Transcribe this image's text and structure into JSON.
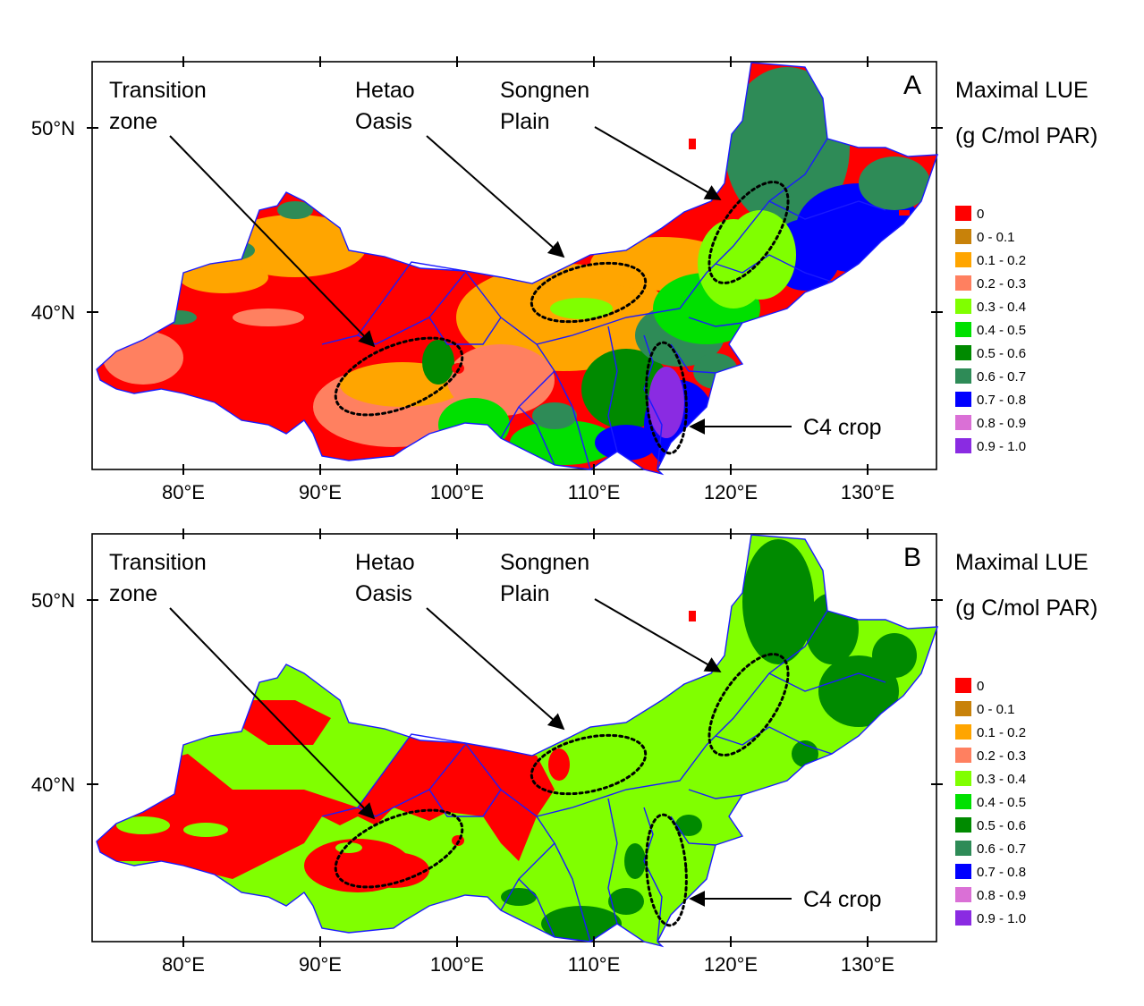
{
  "panels": [
    {
      "id": "A",
      "letter": "A",
      "legend_title_1": "Maximal LUE",
      "legend_title_2": "(g C/mol PAR)",
      "annotations": {
        "transition": [
          "Transition",
          "zone"
        ],
        "hetao": [
          "Hetao",
          "Oasis"
        ],
        "songnen": [
          "Songnen",
          "Plain"
        ],
        "c4": "C4 crop"
      }
    },
    {
      "id": "B",
      "letter": "B",
      "legend_title_1": "Maximal LUE",
      "legend_title_2": "(g C/mol PAR)",
      "annotations": {
        "transition": [
          "Transition",
          "zone"
        ],
        "hetao": [
          "Hetao",
          "Oasis"
        ],
        "songnen": [
          "Songnen",
          "Plain"
        ],
        "c4": "C4 crop"
      }
    }
  ],
  "legend": [
    {
      "label": "0",
      "color": "#ff0000"
    },
    {
      "label": "0 - 0.1",
      "color": "#c8820a"
    },
    {
      "label": "0.1 - 0.2",
      "color": "#ffa500"
    },
    {
      "label": "0.2 - 0.3",
      "color": "#ff8060"
    },
    {
      "label": "0.3 - 0.4",
      "color": "#80ff00"
    },
    {
      "label": "0.4 - 0.5",
      "color": "#00e000"
    },
    {
      "label": "0.5 - 0.6",
      "color": "#008a00"
    },
    {
      "label": "0.6 - 0.7",
      "color": "#2e8b57"
    },
    {
      "label": "0.7 - 0.8",
      "color": "#0000ff"
    },
    {
      "label": "0.8 - 0.9",
      "color": "#da70d6"
    },
    {
      "label": "0.9 - 1.0",
      "color": "#8a2be2"
    }
  ],
  "axes": {
    "lon_ticks": [
      "80°E",
      "90°E",
      "100°E",
      "110°E",
      "120°E",
      "130°E"
    ],
    "lat_ticks": [
      "50°N",
      "40°N"
    ]
  }
}
